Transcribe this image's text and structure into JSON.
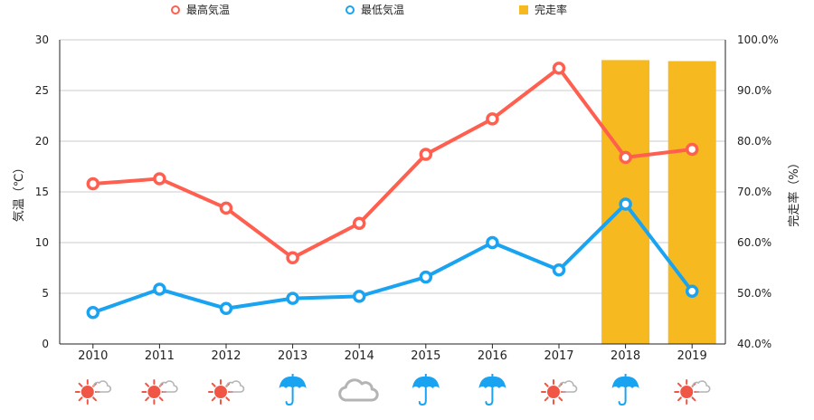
{
  "chart_data": {
    "type": "bar+line",
    "categories": [
      "2010",
      "2011",
      "2012",
      "2013",
      "2014",
      "2015",
      "2016",
      "2017",
      "2018",
      "2019"
    ],
    "legend": {
      "placement": "top",
      "items": [
        {
          "key": "high",
          "label": "最高気温"
        },
        {
          "key": "low",
          "label": "最低気温"
        },
        {
          "key": "rate",
          "label": "完走率"
        }
      ]
    },
    "y_left": {
      "label": "気温（℃）",
      "ylim": [
        0,
        30
      ],
      "ticks": [
        0,
        5,
        10,
        15,
        20,
        25,
        30
      ],
      "tick_labels": [
        "0",
        "5",
        "10",
        "15",
        "20",
        "25",
        "30"
      ]
    },
    "y_right": {
      "label": "完走率（%）",
      "ylim": [
        40,
        100
      ],
      "ticks": [
        40,
        50,
        60,
        70,
        80,
        90,
        100
      ],
      "tick_labels": [
        "40.0%",
        "50.0%",
        "60.0%",
        "70.0%",
        "80.0%",
        "90.0%",
        "100.0%"
      ]
    },
    "grid": true,
    "series": [
      {
        "key": "high",
        "name": "最高気温",
        "type": "line",
        "axis": "left",
        "values": [
          15.8,
          16.3,
          13.4,
          8.5,
          11.9,
          18.7,
          22.2,
          27.2,
          18.4,
          19.2
        ]
      },
      {
        "key": "low",
        "name": "最低気温",
        "type": "line",
        "axis": "left",
        "values": [
          3.1,
          5.4,
          3.5,
          4.5,
          4.7,
          6.6,
          10.0,
          7.3,
          13.8,
          5.2
        ]
      },
      {
        "key": "rate",
        "name": "完走率",
        "type": "bar",
        "axis": "right",
        "values": [
          null,
          null,
          null,
          null,
          null,
          null,
          null,
          null,
          96.0,
          95.8
        ]
      }
    ],
    "weather_icons": [
      "sun-cloud-icon",
      "sun-cloud-icon",
      "sun-cloud-icon",
      "umbrella-icon",
      "cloud-icon",
      "umbrella-icon",
      "umbrella-icon",
      "sun-cloud-icon",
      "umbrella-icon",
      "sun-cloud-icon"
    ],
    "colors": {
      "high": "#ff5f4f",
      "low": "#1aa3f0",
      "rate": "#f6b91f",
      "grid": "#cccccc",
      "axis": "#222222",
      "sun": "#ef5646",
      "rain": "#1aa3f0",
      "cloud": "#b4b4b4"
    }
  }
}
